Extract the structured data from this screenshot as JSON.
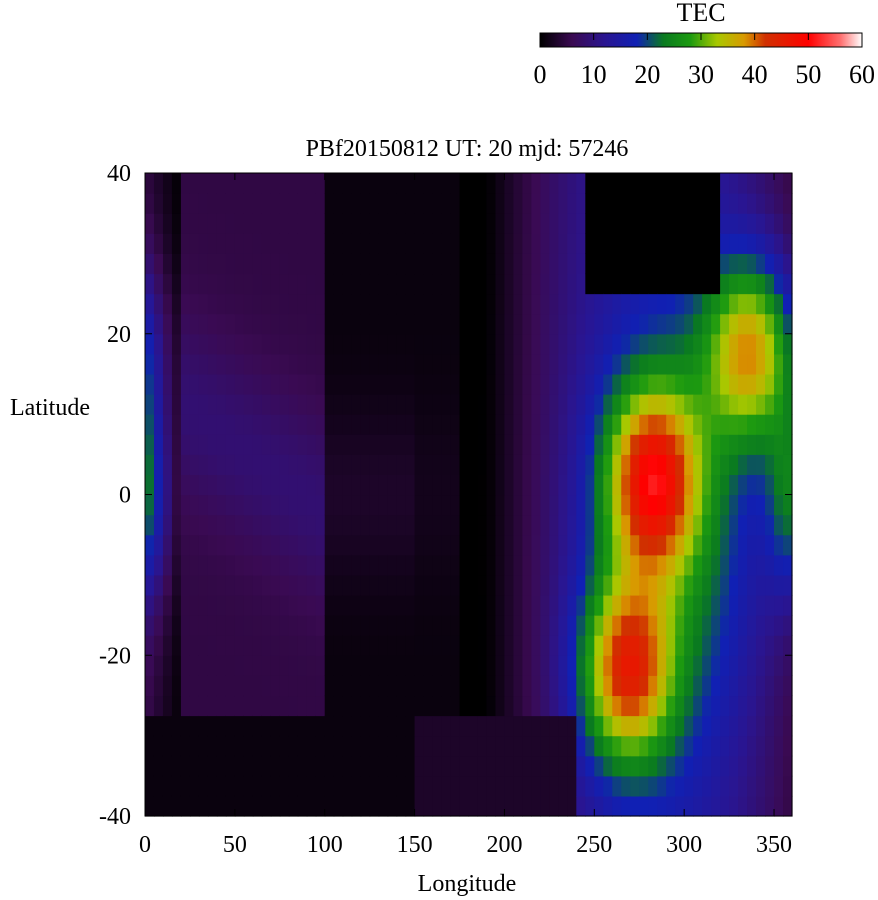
{
  "chart_data": {
    "type": "heatmap",
    "title": "PBf20150812  UT: 20  mjd: 57246",
    "xlabel": "Longitude",
    "ylabel": "Latitude",
    "xlim": [
      0,
      360
    ],
    "ylim": [
      -40,
      40
    ],
    "x_ticks": [
      0,
      50,
      100,
      150,
      200,
      250,
      300,
      350
    ],
    "y_ticks": [
      -40,
      -20,
      0,
      20,
      40
    ],
    "colorbar": {
      "label": "TEC",
      "range": [
        0,
        60
      ],
      "ticks": [
        0,
        10,
        20,
        30,
        40,
        50,
        60
      ],
      "colormap": [
        {
          "v": 0,
          "color": "#000000"
        },
        {
          "v": 6,
          "color": "#3a0a52"
        },
        {
          "v": 12,
          "color": "#2a1590"
        },
        {
          "v": 18,
          "color": "#1020b4"
        },
        {
          "v": 23,
          "color": "#0a7a20"
        },
        {
          "v": 28,
          "color": "#1c9a10"
        },
        {
          "v": 33,
          "color": "#a8c800"
        },
        {
          "v": 38,
          "color": "#d89a00"
        },
        {
          "v": 42,
          "color": "#d03000"
        },
        {
          "v": 50,
          "color": "#ff0000"
        },
        {
          "v": 56,
          "color": "#ff7070"
        },
        {
          "v": 60,
          "color": "#ffffff"
        }
      ]
    },
    "grid": {
      "lon_step": 5,
      "lat_step": 2.5
    },
    "features": {
      "night_region": {
        "lon": [
          100,
          175
        ],
        "value": 1
      },
      "dayside_crests": [
        {
          "lon": 282,
          "lat": 2,
          "peak": 43
        },
        {
          "lon": 268,
          "lat": -22,
          "peak": 42
        },
        {
          "lon": 338,
          "lat": 18,
          "peak": 41
        },
        {
          "lon": 0,
          "lat": 0,
          "peak": 30
        }
      ],
      "empty_region_north": {
        "lon": [
          245,
          320
        ],
        "lat_above": 25
      },
      "empty_region_south": {
        "lon": [
          0,
          250
        ],
        "lat_below": -28
      }
    }
  }
}
